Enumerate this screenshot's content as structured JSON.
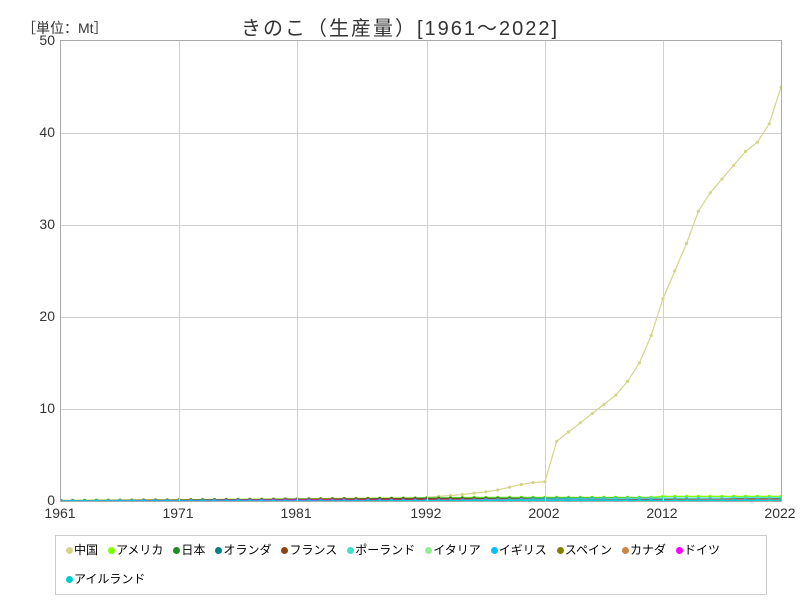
{
  "chart": {
    "type": "line",
    "unit_label": "［単位：Mt］",
    "title": "きのこ（生産量）[1961～2022]",
    "title_fontsize": 20,
    "label_fontsize": 14,
    "background_color": "#ffffff",
    "grid_color": "#d0d0d0",
    "border_color": "#aaaaaa",
    "x": {
      "min": 1961,
      "max": 2022,
      "ticks": [
        1961,
        1971,
        1981,
        1992,
        2002,
        2012,
        2022
      ]
    },
    "y": {
      "min": 0,
      "max": 50,
      "ticks": [
        0,
        10,
        20,
        30,
        40,
        50
      ]
    },
    "years": [
      1961,
      1962,
      1963,
      1964,
      1965,
      1966,
      1967,
      1968,
      1969,
      1970,
      1971,
      1972,
      1973,
      1974,
      1975,
      1976,
      1977,
      1978,
      1979,
      1980,
      1981,
      1982,
      1983,
      1984,
      1985,
      1986,
      1987,
      1988,
      1989,
      1990,
      1991,
      1992,
      1993,
      1994,
      1995,
      1996,
      1997,
      1998,
      1999,
      2000,
      2001,
      2002,
      2003,
      2004,
      2005,
      2006,
      2007,
      2008,
      2009,
      2010,
      2011,
      2012,
      2013,
      2014,
      2015,
      2016,
      2017,
      2018,
      2019,
      2020,
      2021,
      2022
    ],
    "series": [
      {
        "name": "中国",
        "color": "#d4d48a",
        "values": [
          0.1,
          0.1,
          0.1,
          0.1,
          0.1,
          0.1,
          0.1,
          0.1,
          0.1,
          0.1,
          0.1,
          0.1,
          0.1,
          0.1,
          0.1,
          0.1,
          0.1,
          0.1,
          0.1,
          0.1,
          0.1,
          0.1,
          0.1,
          0.1,
          0.15,
          0.16,
          0.18,
          0.2,
          0.22,
          0.25,
          0.3,
          0.4,
          0.5,
          0.6,
          0.7,
          0.85,
          1.0,
          1.2,
          1.5,
          1.8,
          2.0,
          2.1,
          6.5,
          7.5,
          8.5,
          9.5,
          10.5,
          11.5,
          13,
          15,
          18,
          22,
          25,
          28,
          31.5,
          33.5,
          35,
          36.5,
          38,
          39,
          41,
          45
        ]
      },
      {
        "name": "アメリカ",
        "color": "#7fff00",
        "values": [
          0.05,
          0.05,
          0.06,
          0.07,
          0.08,
          0.09,
          0.1,
          0.11,
          0.12,
          0.13,
          0.14,
          0.15,
          0.16,
          0.17,
          0.18,
          0.19,
          0.2,
          0.21,
          0.22,
          0.23,
          0.24,
          0.25,
          0.26,
          0.27,
          0.28,
          0.29,
          0.3,
          0.31,
          0.32,
          0.33,
          0.34,
          0.35,
          0.36,
          0.37,
          0.38,
          0.39,
          0.4,
          0.4,
          0.4,
          0.4,
          0.4,
          0.4,
          0.4,
          0.4,
          0.4,
          0.4,
          0.4,
          0.4,
          0.4,
          0.4,
          0.4,
          0.5,
          0.5,
          0.5,
          0.5,
          0.5,
          0.5,
          0.5,
          0.5,
          0.5,
          0.5,
          0.5
        ]
      },
      {
        "name": "日本",
        "color": "#228b22",
        "values": [
          0.05,
          0.05,
          0.05,
          0.06,
          0.06,
          0.07,
          0.07,
          0.08,
          0.08,
          0.09,
          0.09,
          0.1,
          0.1,
          0.11,
          0.11,
          0.12,
          0.12,
          0.13,
          0.13,
          0.14,
          0.14,
          0.15,
          0.15,
          0.16,
          0.16,
          0.17,
          0.17,
          0.18,
          0.18,
          0.19,
          0.19,
          0.2,
          0.2,
          0.2,
          0.2,
          0.2,
          0.2,
          0.2,
          0.2,
          0.2,
          0.2,
          0.2,
          0.2,
          0.2,
          0.2,
          0.2,
          0.2,
          0.2,
          0.2,
          0.2,
          0.2,
          0.2,
          0.2,
          0.2,
          0.2,
          0.2,
          0.2,
          0.2,
          0.2,
          0.2,
          0.2,
          0.2
        ]
      },
      {
        "name": "オランダ",
        "color": "#008080",
        "values": [
          0.02,
          0.02,
          0.02,
          0.03,
          0.03,
          0.04,
          0.05,
          0.06,
          0.07,
          0.08,
          0.09,
          0.1,
          0.11,
          0.12,
          0.13,
          0.14,
          0.15,
          0.16,
          0.17,
          0.18,
          0.19,
          0.2,
          0.21,
          0.22,
          0.23,
          0.24,
          0.25,
          0.26,
          0.27,
          0.28,
          0.29,
          0.3,
          0.3,
          0.3,
          0.3,
          0.3,
          0.3,
          0.3,
          0.3,
          0.3,
          0.3,
          0.3,
          0.3,
          0.3,
          0.3,
          0.3,
          0.3,
          0.3,
          0.3,
          0.3,
          0.3,
          0.3,
          0.3,
          0.3,
          0.3,
          0.3,
          0.3,
          0.3,
          0.3,
          0.3,
          0.3,
          0.3
        ]
      },
      {
        "name": "フランス",
        "color": "#8b4513",
        "values": [
          0.04,
          0.04,
          0.05,
          0.05,
          0.06,
          0.06,
          0.07,
          0.08,
          0.09,
          0.1,
          0.11,
          0.12,
          0.13,
          0.13,
          0.14,
          0.14,
          0.15,
          0.15,
          0.16,
          0.17,
          0.18,
          0.19,
          0.2,
          0.2,
          0.21,
          0.21,
          0.22,
          0.22,
          0.23,
          0.23,
          0.24,
          0.24,
          0.24,
          0.24,
          0.24,
          0.24,
          0.24,
          0.24,
          0.24,
          0.24,
          0.2,
          0.2,
          0.2,
          0.2,
          0.2,
          0.2,
          0.2,
          0.2,
          0.2,
          0.2,
          0.2,
          0.2,
          0.2,
          0.2,
          0.2,
          0.2,
          0.2,
          0.2,
          0.2,
          0.2,
          0.2,
          0.2
        ]
      },
      {
        "name": "ポーランド",
        "color": "#40e0d0",
        "values": [
          0.01,
          0.01,
          0.01,
          0.01,
          0.01,
          0.01,
          0.01,
          0.01,
          0.01,
          0.01,
          0.01,
          0.01,
          0.01,
          0.01,
          0.01,
          0.01,
          0.01,
          0.01,
          0.01,
          0.01,
          0.01,
          0.01,
          0.02,
          0.02,
          0.03,
          0.04,
          0.05,
          0.06,
          0.07,
          0.08,
          0.09,
          0.1,
          0.11,
          0.12,
          0.13,
          0.14,
          0.15,
          0.16,
          0.17,
          0.18,
          0.19,
          0.2,
          0.21,
          0.22,
          0.23,
          0.24,
          0.25,
          0.26,
          0.27,
          0.28,
          0.29,
          0.3,
          0.3,
          0.3,
          0.3,
          0.3,
          0.3,
          0.35,
          0.35,
          0.35,
          0.35,
          0.35
        ]
      },
      {
        "name": "イタリア",
        "color": "#90ee90",
        "values": [
          0.01,
          0.01,
          0.01,
          0.01,
          0.02,
          0.02,
          0.02,
          0.03,
          0.03,
          0.04,
          0.04,
          0.05,
          0.05,
          0.06,
          0.06,
          0.07,
          0.07,
          0.08,
          0.08,
          0.09,
          0.09,
          0.1,
          0.1,
          0.1,
          0.1,
          0.1,
          0.1,
          0.1,
          0.1,
          0.1,
          0.1,
          0.1,
          0.1,
          0.1,
          0.1,
          0.1,
          0.1,
          0.1,
          0.1,
          0.1,
          0.1,
          0.1,
          0.1,
          0.1,
          0.1,
          0.1,
          0.1,
          0.1,
          0.1,
          0.1,
          0.1,
          0.1,
          0.1,
          0.1,
          0.1,
          0.1,
          0.1,
          0.1,
          0.1,
          0.1,
          0.1,
          0.1
        ]
      },
      {
        "name": "イギリス",
        "color": "#00bfff",
        "values": [
          0.03,
          0.03,
          0.03,
          0.04,
          0.04,
          0.04,
          0.05,
          0.05,
          0.05,
          0.06,
          0.06,
          0.06,
          0.07,
          0.07,
          0.07,
          0.08,
          0.08,
          0.08,
          0.09,
          0.09,
          0.09,
          0.1,
          0.1,
          0.1,
          0.1,
          0.1,
          0.1,
          0.1,
          0.1,
          0.1,
          0.1,
          0.1,
          0.1,
          0.1,
          0.1,
          0.1,
          0.1,
          0.1,
          0.1,
          0.1,
          0.1,
          0.1,
          0.1,
          0.1,
          0.1,
          0.1,
          0.1,
          0.1,
          0.1,
          0.1,
          0.1,
          0.1,
          0.1,
          0.1,
          0.1,
          0.1,
          0.1,
          0.1,
          0.1,
          0.1,
          0.1,
          0.1
        ]
      },
      {
        "name": "スペイン",
        "color": "#808000",
        "values": [
          0.01,
          0.01,
          0.01,
          0.01,
          0.01,
          0.01,
          0.01,
          0.01,
          0.02,
          0.02,
          0.02,
          0.02,
          0.03,
          0.03,
          0.03,
          0.04,
          0.04,
          0.04,
          0.05,
          0.05,
          0.05,
          0.06,
          0.06,
          0.07,
          0.07,
          0.08,
          0.08,
          0.09,
          0.09,
          0.1,
          0.1,
          0.1,
          0.1,
          0.1,
          0.1,
          0.1,
          0.1,
          0.1,
          0.1,
          0.1,
          0.1,
          0.1,
          0.1,
          0.1,
          0.1,
          0.1,
          0.1,
          0.1,
          0.1,
          0.1,
          0.1,
          0.1,
          0.15,
          0.15,
          0.15,
          0.15,
          0.15,
          0.15,
          0.15,
          0.15,
          0.15,
          0.15
        ]
      },
      {
        "name": "カナダ",
        "color": "#cd853f",
        "values": [
          0.01,
          0.01,
          0.01,
          0.01,
          0.01,
          0.01,
          0.01,
          0.02,
          0.02,
          0.02,
          0.02,
          0.02,
          0.03,
          0.03,
          0.03,
          0.03,
          0.04,
          0.04,
          0.04,
          0.04,
          0.05,
          0.05,
          0.05,
          0.05,
          0.06,
          0.06,
          0.06,
          0.06,
          0.07,
          0.07,
          0.07,
          0.08,
          0.08,
          0.08,
          0.08,
          0.09,
          0.09,
          0.09,
          0.1,
          0.1,
          0.1,
          0.1,
          0.1,
          0.1,
          0.1,
          0.1,
          0.1,
          0.1,
          0.1,
          0.1,
          0.1,
          0.1,
          0.1,
          0.1,
          0.15,
          0.15,
          0.15,
          0.15,
          0.15,
          0.15,
          0.15,
          0.15
        ]
      },
      {
        "name": "ドイツ",
        "color": "#ff00ff",
        "values": [
          0.02,
          0.02,
          0.02,
          0.02,
          0.03,
          0.03,
          0.03,
          0.04,
          0.04,
          0.04,
          0.05,
          0.05,
          0.05,
          0.06,
          0.06,
          0.06,
          0.07,
          0.07,
          0.07,
          0.08,
          0.08,
          0.08,
          0.08,
          0.08,
          0.08,
          0.08,
          0.08,
          0.08,
          0.08,
          0.08,
          0.08,
          0.08,
          0.08,
          0.08,
          0.08,
          0.08,
          0.08,
          0.08,
          0.08,
          0.08,
          0.08,
          0.08,
          0.08,
          0.08,
          0.08,
          0.08,
          0.08,
          0.08,
          0.08,
          0.08,
          0.08,
          0.08,
          0.08,
          0.08,
          0.08,
          0.08,
          0.08,
          0.08,
          0.08,
          0.08,
          0.08,
          0.08
        ]
      },
      {
        "name": "アイルランド",
        "color": "#00ced1",
        "values": [
          0.01,
          0.01,
          0.01,
          0.01,
          0.01,
          0.01,
          0.01,
          0.01,
          0.01,
          0.01,
          0.01,
          0.01,
          0.01,
          0.01,
          0.01,
          0.01,
          0.01,
          0.01,
          0.01,
          0.01,
          0.02,
          0.02,
          0.02,
          0.02,
          0.03,
          0.03,
          0.03,
          0.03,
          0.04,
          0.04,
          0.04,
          0.05,
          0.05,
          0.05,
          0.05,
          0.06,
          0.06,
          0.06,
          0.07,
          0.07,
          0.07,
          0.07,
          0.07,
          0.07,
          0.07,
          0.07,
          0.07,
          0.07,
          0.07,
          0.07,
          0.07,
          0.07,
          0.07,
          0.07,
          0.07,
          0.07,
          0.07,
          0.07,
          0.07,
          0.07,
          0.07,
          0.07
        ]
      }
    ],
    "legend": {
      "border_color": "#cccccc",
      "font_size": 12
    }
  }
}
